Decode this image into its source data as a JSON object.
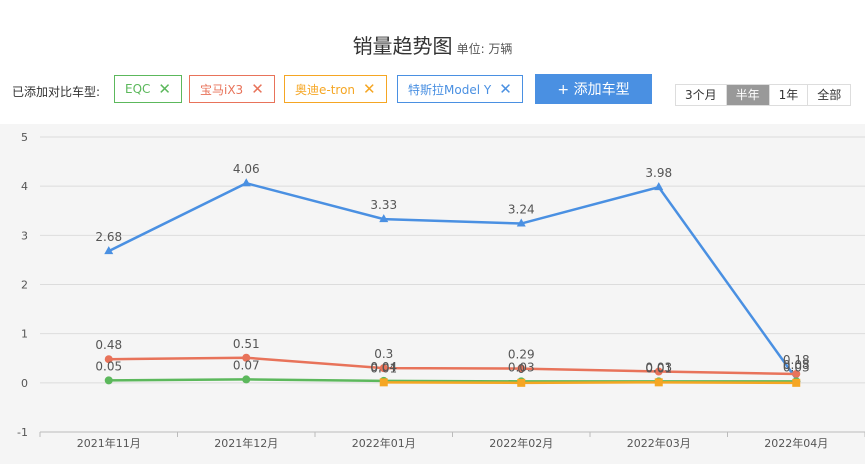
{
  "header": {
    "title": "销量趋势图",
    "unit": "单位: 万辆"
  },
  "toolbar": {
    "label": "已添加对比车型:",
    "chips": [
      {
        "label": "EQC",
        "color": "#5cb85c"
      },
      {
        "label": "宝马iX3",
        "color": "#e8735a"
      },
      {
        "label": "奥迪e-tron",
        "color": "#f5a623"
      },
      {
        "label": "特斯拉Model Y",
        "color": "#4a90e2"
      }
    ],
    "add_label": "+ 添加车型",
    "ranges": [
      "3个月",
      "半年",
      "1年",
      "全部"
    ],
    "active_range": "半年"
  },
  "chart_data": {
    "type": "line",
    "categories": [
      "2021年11月",
      "2021年12月",
      "2022年01月",
      "2022年02月",
      "2022年03月",
      "2022年04月"
    ],
    "ylim": [
      -1,
      5
    ],
    "yticks": [
      -1,
      0,
      1,
      2,
      3,
      4,
      5
    ],
    "grid": true,
    "series": [
      {
        "name": "特斯拉Model Y",
        "color": "#4a90e2",
        "marker": "triangle",
        "values": [
          2.68,
          4.06,
          3.33,
          3.24,
          3.98,
          0.08
        ]
      },
      {
        "name": "宝马iX3",
        "color": "#e8735a",
        "marker": "circle",
        "values": [
          0.48,
          0.51,
          0.3,
          0.29,
          0.23,
          0.18
        ]
      },
      {
        "name": "EQC",
        "color": "#5cb85c",
        "marker": "circle",
        "values": [
          0.05,
          0.07,
          0.04,
          0.03,
          0.03,
          0.03
        ]
      },
      {
        "name": "奥迪e-tron",
        "color": "#f5a623",
        "marker": "square",
        "values": [
          null,
          null,
          0.01,
          0,
          0.01,
          0
        ]
      }
    ],
    "labels": [
      {
        "series": 0,
        "index": 0,
        "text": "2.68"
      },
      {
        "series": 0,
        "index": 1,
        "text": "4.06"
      },
      {
        "series": 0,
        "index": 2,
        "text": "3.33"
      },
      {
        "series": 0,
        "index": 3,
        "text": "3.24"
      },
      {
        "series": 0,
        "index": 4,
        "text": "3.98"
      },
      {
        "series": 1,
        "index": 0,
        "text": "0.48"
      },
      {
        "series": 1,
        "index": 1,
        "text": "0.51"
      },
      {
        "series": 1,
        "index": 2,
        "text": "0.3"
      },
      {
        "series": 1,
        "index": 3,
        "text": "0.29"
      },
      {
        "series": 1,
        "index": 5,
        "text": "0.18"
      },
      {
        "series": 2,
        "index": 0,
        "text": "0.05"
      },
      {
        "series": 2,
        "index": 1,
        "text": "0.07"
      },
      {
        "series": 2,
        "index": 2,
        "text": "0.04"
      },
      {
        "series": 2,
        "index": 3,
        "text": "0.03"
      },
      {
        "series": 2,
        "index": 4,
        "text": "0.03"
      },
      {
        "series": 2,
        "index": 5,
        "text": "0.03"
      },
      {
        "series": 3,
        "index": 2,
        "text": "0.01"
      },
      {
        "series": 3,
        "index": 3,
        "text": "0"
      },
      {
        "series": 3,
        "index": 4,
        "text": "0.01"
      },
      {
        "series": 0,
        "index": 5,
        "text": "0.08"
      }
    ]
  }
}
